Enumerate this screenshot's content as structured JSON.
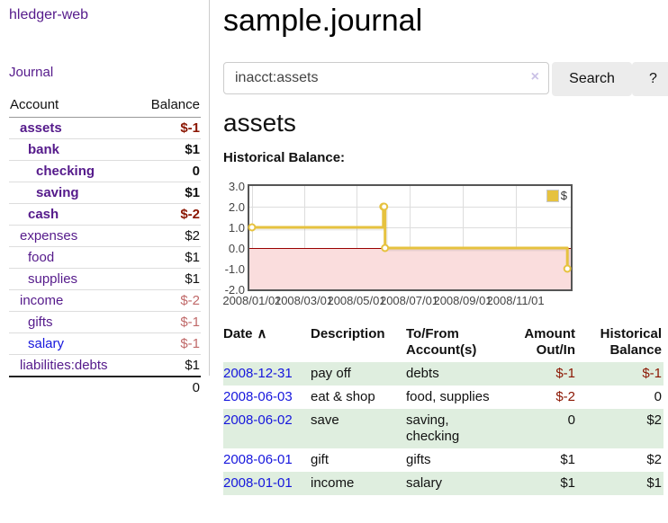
{
  "colors": {
    "link_purple": "#551a8b",
    "link_blue": "#1616dd",
    "negative_strong": "#8b1602",
    "negative_muted": "#c06969",
    "row_green": "#dfeedf",
    "chart_gold": "#e6c23f",
    "negative_region_pink": "#fadddd",
    "zero_line_red": "#990000",
    "grid_gray": "#dddddd",
    "chart_border": "#555555",
    "button_bg": "#ececec"
  },
  "sidebar": {
    "brand": "hledger-web",
    "nav_journal": "Journal",
    "accounts": {
      "header_account": "Account",
      "header_balance": "Balance",
      "rows": [
        {
          "name": "assets",
          "level": 1,
          "bold": true,
          "balance": "$-1",
          "neg": "strong"
        },
        {
          "name": "bank",
          "level": 2,
          "bold": true,
          "balance": "$1"
        },
        {
          "name": "checking",
          "level": 3,
          "bold": true,
          "balance": "0"
        },
        {
          "name": "saving",
          "level": 3,
          "bold": true,
          "balance": "$1"
        },
        {
          "name": "cash",
          "level": 2,
          "bold": true,
          "balance": "$-2",
          "neg": "strong"
        },
        {
          "name": "expenses",
          "level": 1,
          "bold": false,
          "balance": "$2"
        },
        {
          "name": "food",
          "level": 2,
          "bold": false,
          "balance": "$1"
        },
        {
          "name": "supplies",
          "level": 2,
          "bold": false,
          "balance": "$1"
        },
        {
          "name": "income",
          "level": 1,
          "bold": false,
          "balance": "$-2",
          "neg": "muted"
        },
        {
          "name": "gifts",
          "level": 2,
          "bold": false,
          "balance": "$-1",
          "neg": "muted"
        },
        {
          "name": "salary",
          "level": 2,
          "bold": false,
          "balance": "$-1",
          "neg": "muted",
          "blue": true
        },
        {
          "name": "liabilities:debts",
          "level": 1,
          "bold": false,
          "balance": "$1"
        }
      ],
      "total": "0"
    }
  },
  "main": {
    "title": "sample.journal",
    "search": {
      "value": "inacct:assets",
      "clear_icon": "×",
      "button_label": "Search",
      "help_label": "?"
    },
    "heading": "assets",
    "chart_label": "Historical Balance:"
  },
  "chart_data": {
    "type": "line",
    "step": true,
    "title": "Historical Balance:",
    "series": [
      {
        "name": "$",
        "color": "#e6c23f",
        "points": [
          [
            "2008-01-01",
            1
          ],
          [
            "2008-06-01",
            2
          ],
          [
            "2008-06-02",
            2
          ],
          [
            "2008-06-03",
            0
          ],
          [
            "2008-12-31",
            -1
          ]
        ]
      }
    ],
    "ylim": [
      -2,
      3
    ],
    "y_ticks": [
      "3.0",
      "2.0",
      "1.0",
      "0.0",
      "-1.0",
      "-2.0"
    ],
    "x_ticks": [
      "2008/01/01",
      "2008/03/01",
      "2008/05/01",
      "2008/07/01",
      "2008/09/01",
      "2008/11/01"
    ],
    "x_range": [
      "2008-01-01",
      "2009-01-01"
    ],
    "negative_region_below": 0,
    "legend": {
      "label": "$",
      "position": "top-right"
    },
    "grid": true,
    "layout": {
      "pad_days": 3
    }
  },
  "transactions": {
    "headers": [
      {
        "line1": "Date",
        "line2": "",
        "align": "left",
        "sort_icon": "∧"
      },
      {
        "line1": "Description",
        "line2": "",
        "align": "left"
      },
      {
        "line1": "To/From",
        "line2": "Account(s)",
        "align": "left"
      },
      {
        "line1": "Amount",
        "line2": "Out/In",
        "align": "right"
      },
      {
        "line1": "Historical",
        "line2": "Balance",
        "align": "right"
      }
    ],
    "rows": [
      {
        "date": "2008-12-31",
        "description": "pay off",
        "accounts": "debts",
        "amount": "$-1",
        "amount_neg": true,
        "balance": "$-1",
        "balance_neg": true
      },
      {
        "date": "2008-06-03",
        "description": "eat & shop",
        "accounts": "food, supplies",
        "amount": "$-2",
        "amount_neg": true,
        "balance": "0",
        "balance_neg": false
      },
      {
        "date": "2008-06-02",
        "description": "save",
        "accounts": "saving, checking",
        "amount": "0",
        "amount_neg": false,
        "balance": "$2",
        "balance_neg": false
      },
      {
        "date": "2008-06-01",
        "description": "gift",
        "accounts": "gifts",
        "amount": "$1",
        "amount_neg": false,
        "balance": "$2",
        "balance_neg": false
      },
      {
        "date": "2008-01-01",
        "description": "income",
        "accounts": "salary",
        "amount": "$1",
        "amount_neg": false,
        "balance": "$1",
        "balance_neg": false
      }
    ]
  }
}
